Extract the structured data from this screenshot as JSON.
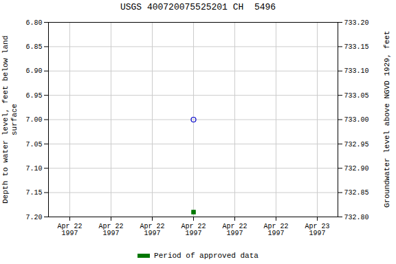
{
  "chart_data": {
    "type": "scatter",
    "title": "USGS 400720075525201 CH  5496",
    "x_label": null,
    "y_label": "Depth to water level, feet below land\n surface",
    "y2_label": "Groundwater level above NGVD 1929, feet",
    "categories": [
      "Apr 22\n1997",
      "Apr 22\n1997",
      "Apr 22\n1997",
      "Apr 22\n1997",
      "Apr 22\n1997",
      "Apr 22\n1997",
      "Apr 23\n1997"
    ],
    "series": [
      {
        "color": "#0000cc",
        "marker": "circle",
        "values": [
          null,
          null,
          null,
          7.0,
          null,
          null,
          null
        ]
      },
      {
        "name": "Period of approved data",
        "color": "#007700",
        "marker": "square",
        "values": [
          null,
          null,
          null,
          7.19,
          null,
          null,
          null
        ]
      }
    ],
    "ylim": [
      7.2,
      6.8
    ],
    "yticks": [
      {
        "value": 6.8,
        "label": "6.80"
      },
      6.85,
      {
        "value": 6.9,
        "label": "6.90"
      },
      6.95,
      {
        "value": 7.0,
        "label": "7.00"
      },
      7.05,
      {
        "value": 7.1,
        "label": "7.10"
      },
      7.15,
      {
        "value": 7.2,
        "label": "7.20"
      }
    ],
    "y2lim": [
      732.8,
      733.2
    ],
    "y2ticks": [
      {
        "value": 733.2,
        "label": "733.20"
      },
      733.15,
      {
        "value": 733.1,
        "label": "733.10"
      },
      733.05,
      {
        "value": 733.0,
        "label": "733.00"
      },
      732.95,
      {
        "value": 732.9,
        "label": "732.90"
      },
      732.85,
      {
        "value": 732.8,
        "label": "732.80"
      }
    ],
    "grid": true,
    "legend": "bottom"
  }
}
